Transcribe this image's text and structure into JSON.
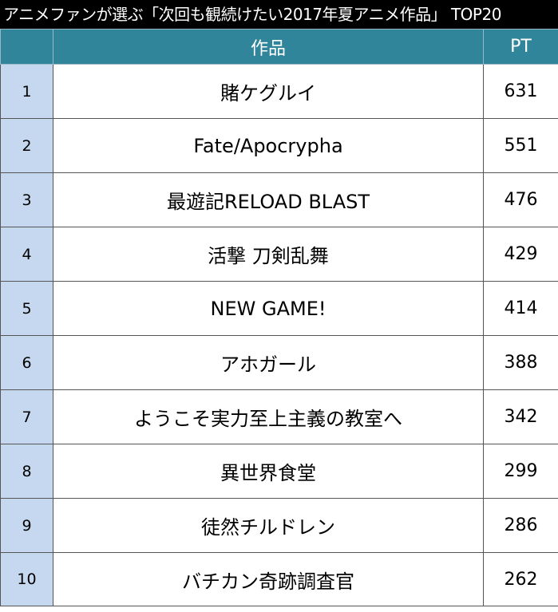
{
  "title": "アニメファンが選ぶ「次回も観続けたい2017年夏アニメ作品」 TOP20",
  "table": {
    "headers": {
      "rank": "",
      "title": "作品",
      "points": "PT"
    },
    "rows": [
      {
        "rank": "1",
        "title": "賭ケグルイ",
        "points": "631"
      },
      {
        "rank": "2",
        "title": "Fate/Apocrypha",
        "points": "551"
      },
      {
        "rank": "3",
        "title": "最遊記RELOAD BLAST",
        "points": "476"
      },
      {
        "rank": "4",
        "title": "活撃 刀剣乱舞",
        "points": "429"
      },
      {
        "rank": "5",
        "title": "NEW GAME!",
        "points": "414"
      },
      {
        "rank": "6",
        "title": "アホガール",
        "points": "388"
      },
      {
        "rank": "7",
        "title": "ようこそ実力至上主義の教室へ",
        "points": "342"
      },
      {
        "rank": "8",
        "title": "異世界食堂",
        "points": "299"
      },
      {
        "rank": "9",
        "title": "徒然チルドレン",
        "points": "286"
      },
      {
        "rank": "10",
        "title": "バチカン奇跡調査官",
        "points": "262"
      }
    ]
  },
  "colors": {
    "title_background": "#000000",
    "header_background": "#31859b",
    "rank_cell_background": "#c5d8ef"
  }
}
